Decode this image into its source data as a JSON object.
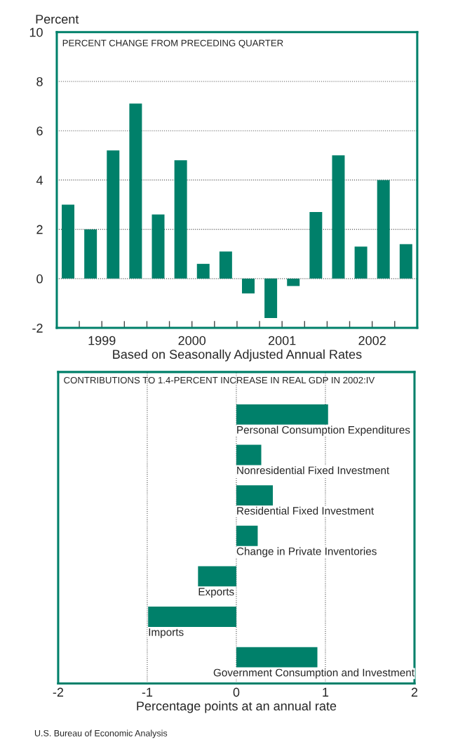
{
  "chart_data": [
    {
      "type": "bar",
      "title": "PERCENT CHANGE FROM PRECEDING QUARTER",
      "ylabel": "Percent",
      "xlabel": "Based on Seasonally Adjusted Annual Rates",
      "x": [
        1999.125,
        1999.375,
        1999.625,
        1999.875,
        2000.125,
        2000.375,
        2000.625,
        2000.875,
        2001.125,
        2001.375,
        2001.625,
        2001.875,
        2002.125,
        2002.375,
        2002.625,
        2002.875
      ],
      "values": [
        3.0,
        2.0,
        5.2,
        7.1,
        2.6,
        4.8,
        0.6,
        1.1,
        -0.6,
        -1.6,
        -0.3,
        2.7,
        5.0,
        1.3,
        4.0,
        1.4
      ],
      "color": "#00806a",
      "xlim": [
        1999,
        2003
      ],
      "ylim": [
        -2,
        10
      ],
      "yticks": [
        -2,
        0,
        2,
        4,
        6,
        8,
        10
      ],
      "xticks": [
        {
          "value": 1999.25,
          "label": null
        },
        {
          "value": 1999.5,
          "label": "1999"
        },
        {
          "value": 1999.75,
          "label": null
        },
        {
          "value": 2000,
          "label": null
        },
        {
          "value": 2000.25,
          "label": null
        },
        {
          "value": 2000.5,
          "label": "2000"
        },
        {
          "value": 2000.75,
          "label": null
        },
        {
          "value": 2001,
          "label": null
        },
        {
          "value": 2001.25,
          "label": null
        },
        {
          "value": 2001.5,
          "label": "2001"
        },
        {
          "value": 2001.75,
          "label": null
        },
        {
          "value": 2002,
          "label": null
        },
        {
          "value": 2002.25,
          "label": null
        },
        {
          "value": 2002.5,
          "label": "2002"
        },
        {
          "value": 2002.75,
          "label": null
        }
      ],
      "grid": "y",
      "legend": false
    },
    {
      "type": "bar",
      "orientation": "horizontal",
      "title": "CONTRIBUTIONS TO 1.4-PERCENT INCREASE IN REAL GDP IN 2002:IV",
      "xlabel": "Percentage points at an annual rate",
      "categories": [
        "Personal Consumption Expenditures",
        "Nonresidential Fixed Investment",
        "Residential Fixed Investment",
        "Change in Private Inventories",
        "Exports",
        "Imports",
        "Government Consumption and Investment"
      ],
      "values": [
        1.03,
        0.28,
        0.41,
        0.24,
        -0.43,
        -0.99,
        0.91
      ],
      "color": "#00806a",
      "xlim": [
        -2,
        2
      ],
      "xticks": [
        -2,
        -1,
        0,
        1,
        2
      ],
      "grid": "x",
      "legend": false,
      "annotations": [
        "U.S. Bureau of Economic Analysis"
      ]
    }
  ]
}
